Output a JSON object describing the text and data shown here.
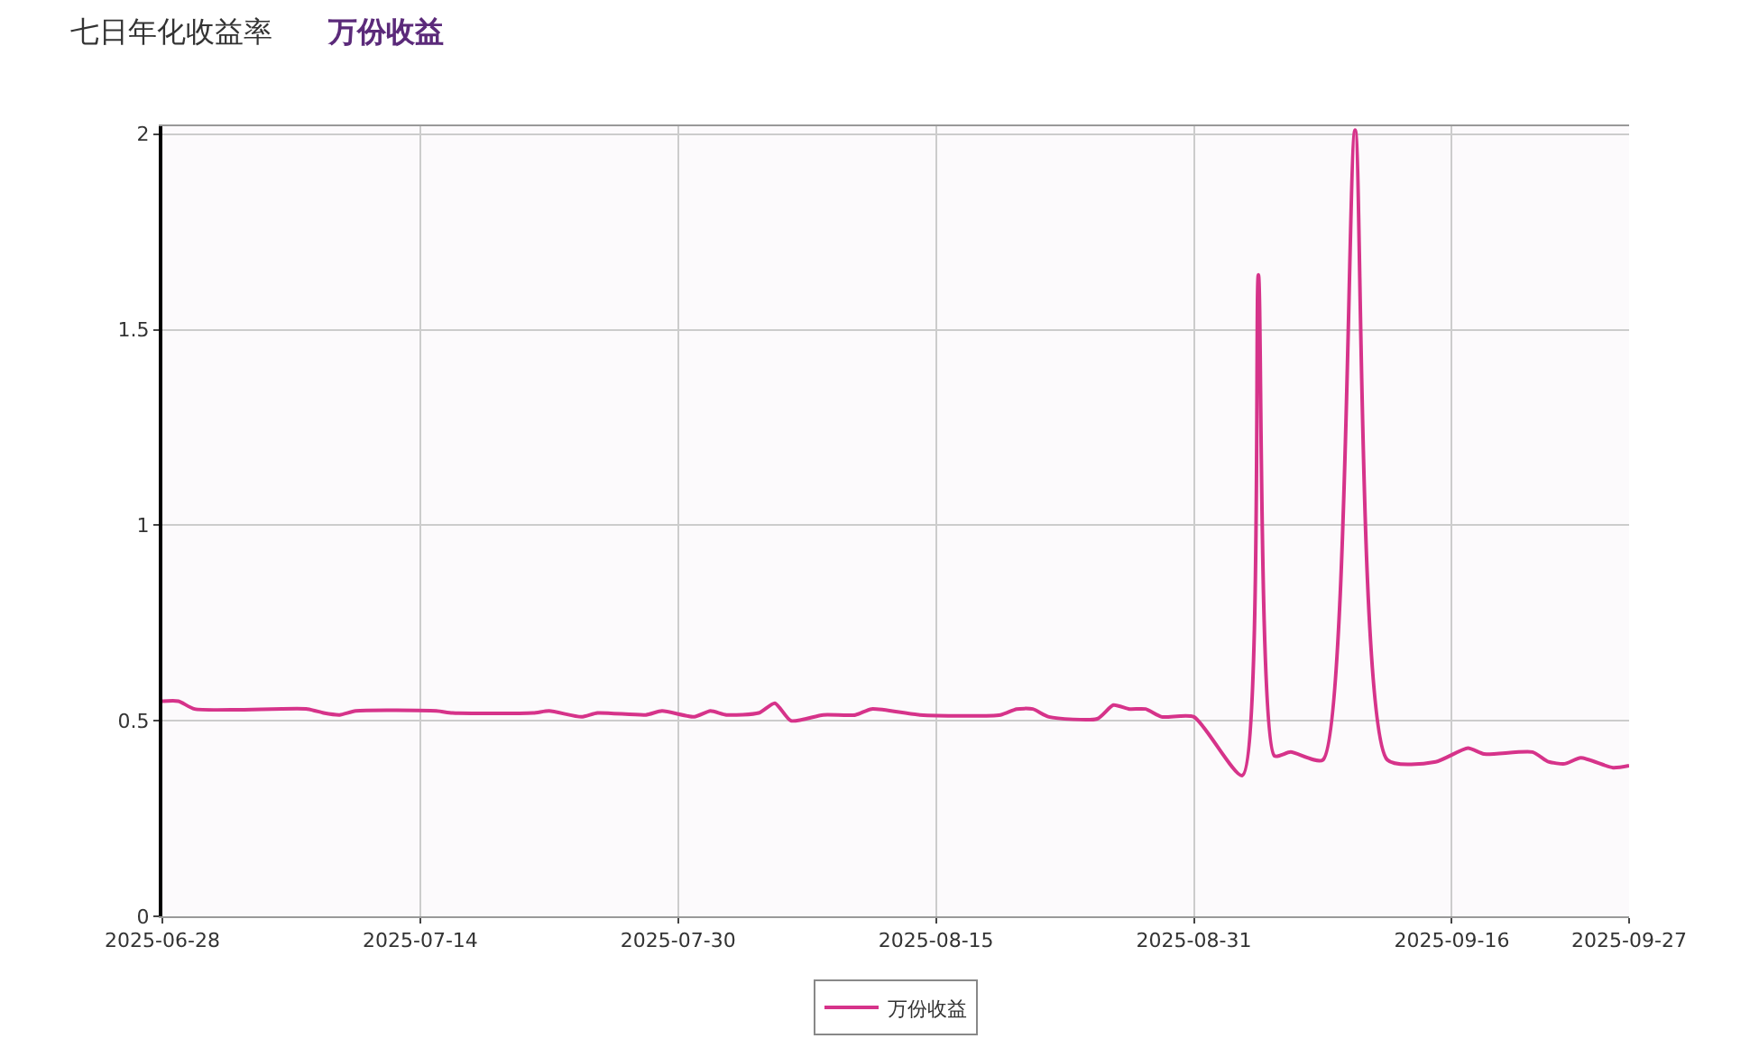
{
  "chart_data": {
    "type": "line",
    "annotations": [
      "七日年化收益率",
      "万份收益"
    ],
    "x": [
      "2025-06-28",
      "2025-06-29",
      "2025-06-30",
      "2025-07-07",
      "2025-07-08",
      "2025-07-09",
      "2025-07-10",
      "2025-07-15",
      "2025-07-16",
      "2025-07-21",
      "2025-07-22",
      "2025-07-24",
      "2025-07-25",
      "2025-07-28",
      "2025-07-29",
      "2025-07-31",
      "2025-08-01",
      "2025-08-02",
      "2025-08-04",
      "2025-08-05",
      "2025-08-06",
      "2025-08-08",
      "2025-08-10",
      "2025-08-11",
      "2025-08-14",
      "2025-08-19",
      "2025-08-20",
      "2025-08-21",
      "2025-08-22",
      "2025-08-25",
      "2025-08-26",
      "2025-08-27",
      "2025-08-28",
      "2025-08-29",
      "2025-08-31",
      "2025-09-03",
      "2025-09-04",
      "2025-09-05",
      "2025-09-06",
      "2025-09-08",
      "2025-09-10",
      "2025-09-12",
      "2025-09-15",
      "2025-09-17",
      "2025-09-18",
      "2025-09-21",
      "2025-09-22",
      "2025-09-23",
      "2025-09-24",
      "2025-09-26",
      "2025-09-27"
    ],
    "series": [
      {
        "name": "万份收益",
        "color": "#d6338a",
        "values": [
          0.55,
          0.55,
          0.53,
          0.53,
          0.52,
          0.515,
          0.525,
          0.525,
          0.52,
          0.52,
          0.525,
          0.51,
          0.52,
          0.515,
          0.525,
          0.51,
          0.525,
          0.515,
          0.52,
          0.545,
          0.5,
          0.515,
          0.515,
          0.53,
          0.515,
          0.515,
          0.53,
          0.53,
          0.51,
          0.505,
          0.54,
          0.53,
          0.53,
          0.51,
          0.51,
          0.36,
          1.64,
          0.41,
          0.42,
          0.4,
          2.01,
          0.4,
          0.395,
          0.43,
          0.415,
          0.42,
          0.395,
          0.39,
          0.405,
          0.38,
          0.385
        ]
      }
    ],
    "xlim": [
      "2025-06-28",
      "2025-09-27"
    ],
    "xticks": [
      "2025-06-28",
      "2025-07-14",
      "2025-07-30",
      "2025-08-15",
      "2025-08-31",
      "2025-09-16",
      "2025-09-27"
    ],
    "ylim": [
      0,
      2.02
    ],
    "yticks": [
      0,
      {
        "value": 0.5,
        "label": "0.5"
      },
      1,
      {
        "value": 1.5,
        "label": "1.5"
      },
      2
    ],
    "grid": true,
    "legend": "bottom",
    "marker": "none",
    "line_style": "solid"
  }
}
